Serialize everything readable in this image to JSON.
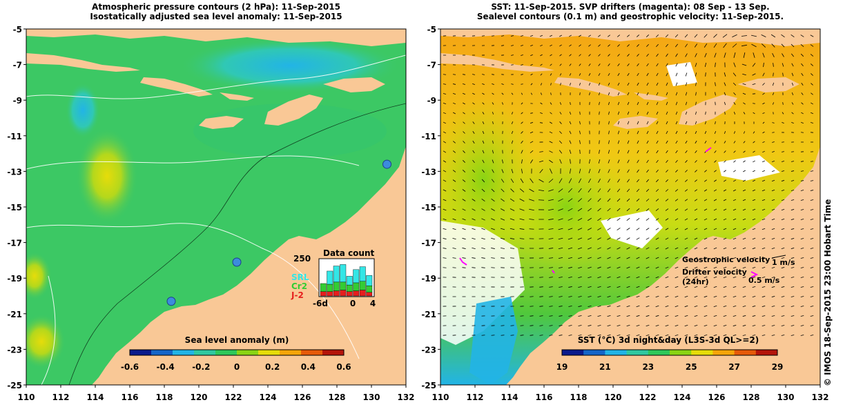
{
  "left_panel": {
    "title_line1": "Atmospheric pressure contours (2 hPa): 11-Sep-2015",
    "title_line2": "Isostatically adjusted sea level anomaly: 11-Sep-2015",
    "colorbar_label": "Sea level anomaly (m)",
    "colorbar_ticks": [
      "-0.6",
      "-0.4",
      "-0.2",
      "0",
      "0.2",
      "0.4",
      "0.6"
    ],
    "colorbar_colors": [
      "#0a1a8c",
      "#1565c8",
      "#22b4e6",
      "#30c8a0",
      "#2ec85a",
      "#8ad414",
      "#e6dc0a",
      "#f5a50a",
      "#e65a0a",
      "#b4140a"
    ],
    "inset": {
      "title": "Data count",
      "ymax_label": "250",
      "x_ticks": [
        "-6d",
        "0",
        "4"
      ],
      "legend": [
        {
          "label": "SRL",
          "color": "#33e6e6"
        },
        {
          "label": "Cr2",
          "color": "#33cc33"
        },
        {
          "label": "J-2",
          "color": "#e61e1e"
        }
      ],
      "bars": [
        {
          "srl": 0,
          "cr2": 55,
          "j2": 30
        },
        {
          "srl": 90,
          "cr2": 50,
          "j2": 30
        },
        {
          "srl": 110,
          "cr2": 60,
          "j2": 35
        },
        {
          "srl": 120,
          "cr2": 55,
          "j2": 40
        },
        {
          "srl": 60,
          "cr2": 45,
          "j2": 30
        },
        {
          "srl": 90,
          "cr2": 55,
          "j2": 35
        },
        {
          "srl": 100,
          "cr2": 60,
          "j2": 40
        },
        {
          "srl": 70,
          "cr2": 45,
          "j2": 25
        }
      ]
    },
    "tide_gauges": [
      {
        "lon": 130.9,
        "lat": -12.6,
        "label": ""
      },
      {
        "lon": 122.2,
        "lat": -18.1,
        "label": ""
      },
      {
        "lon": 118.4,
        "lat": -20.3,
        "label": ""
      }
    ]
  },
  "right_panel": {
    "title_line1": "SST: 11-Sep-2015. SVP drifters (magenta): 08 Sep - 13 Sep.",
    "title_line2": "Sealevel contours (0.1 m) and geostrophic velocity: 11-Sep-2015.",
    "colorbar_label": "SST (°C) 3d night&day (L3S-3d QL>=2)",
    "colorbar_ticks": [
      "19",
      "21",
      "23",
      "25",
      "27",
      "29"
    ],
    "colorbar_colors": [
      "#0a1a8c",
      "#1565c8",
      "#22b4e6",
      "#30c8a0",
      "#2ec85a",
      "#8ad414",
      "#e6dc0a",
      "#f5a50a",
      "#e65a0a",
      "#b4140a"
    ],
    "legend_geo_label": "Geostrophic velocity",
    "legend_geo_value": "1 m/s",
    "legend_drifter_label1": "Drifter velocity",
    "legend_drifter_label2": "(24hr)",
    "legend_drifter_value": "0.5 m/s"
  },
  "axes": {
    "lat_ticks": [
      "-5",
      "-7",
      "-9",
      "-11",
      "-13",
      "-15",
      "-17",
      "-19",
      "-21",
      "-23",
      "-25"
    ],
    "lon_ticks": [
      "110",
      "112",
      "114",
      "116",
      "118",
      "120",
      "122",
      "124",
      "126",
      "128",
      "130",
      "132"
    ]
  },
  "colors": {
    "land": "#f9c896",
    "ocean_left": "#3cc864",
    "ocean_right": "#f5a514",
    "missing": "#ffffff",
    "drifter": "#ff00ff"
  },
  "credit": "© IMOS 18-Sep-2015 23:00 Hobart Time"
}
